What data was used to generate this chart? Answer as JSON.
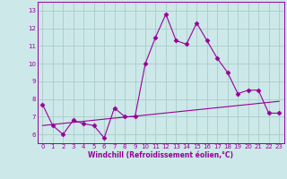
{
  "x": [
    0,
    1,
    2,
    3,
    4,
    5,
    6,
    7,
    8,
    9,
    10,
    11,
    12,
    13,
    14,
    15,
    16,
    17,
    18,
    19,
    20,
    21,
    22,
    23
  ],
  "y_main": [
    7.7,
    6.5,
    6.0,
    6.8,
    6.6,
    6.5,
    5.8,
    7.5,
    7.0,
    7.0,
    10.0,
    11.5,
    12.8,
    11.3,
    11.1,
    12.3,
    11.3,
    10.3,
    9.5,
    8.3,
    8.5,
    8.5,
    7.2,
    7.2
  ],
  "y_line": [
    6.5,
    6.56,
    6.62,
    6.68,
    6.74,
    6.8,
    6.86,
    6.92,
    6.97,
    7.03,
    7.09,
    7.15,
    7.21,
    7.27,
    7.33,
    7.39,
    7.45,
    7.51,
    7.57,
    7.63,
    7.69,
    7.75,
    7.81,
    7.87
  ],
  "line_color": "#990099",
  "bg_color": "#cce8e8",
  "grid_color": "#aacccc",
  "xlabel": "Windchill (Refroidissement éolien,°C)",
  "xlim": [
    -0.5,
    23.5
  ],
  "ylim": [
    5.5,
    13.5
  ],
  "yticks": [
    6,
    7,
    8,
    9,
    10,
    11,
    12,
    13
  ],
  "xticks": [
    0,
    1,
    2,
    3,
    4,
    5,
    6,
    7,
    8,
    9,
    10,
    11,
    12,
    13,
    14,
    15,
    16,
    17,
    18,
    19,
    20,
    21,
    22,
    23
  ],
  "marker": "D",
  "markersize": 2.5,
  "linewidth": 0.8,
  "tick_fontsize": 5.0,
  "xlabel_fontsize": 5.5
}
